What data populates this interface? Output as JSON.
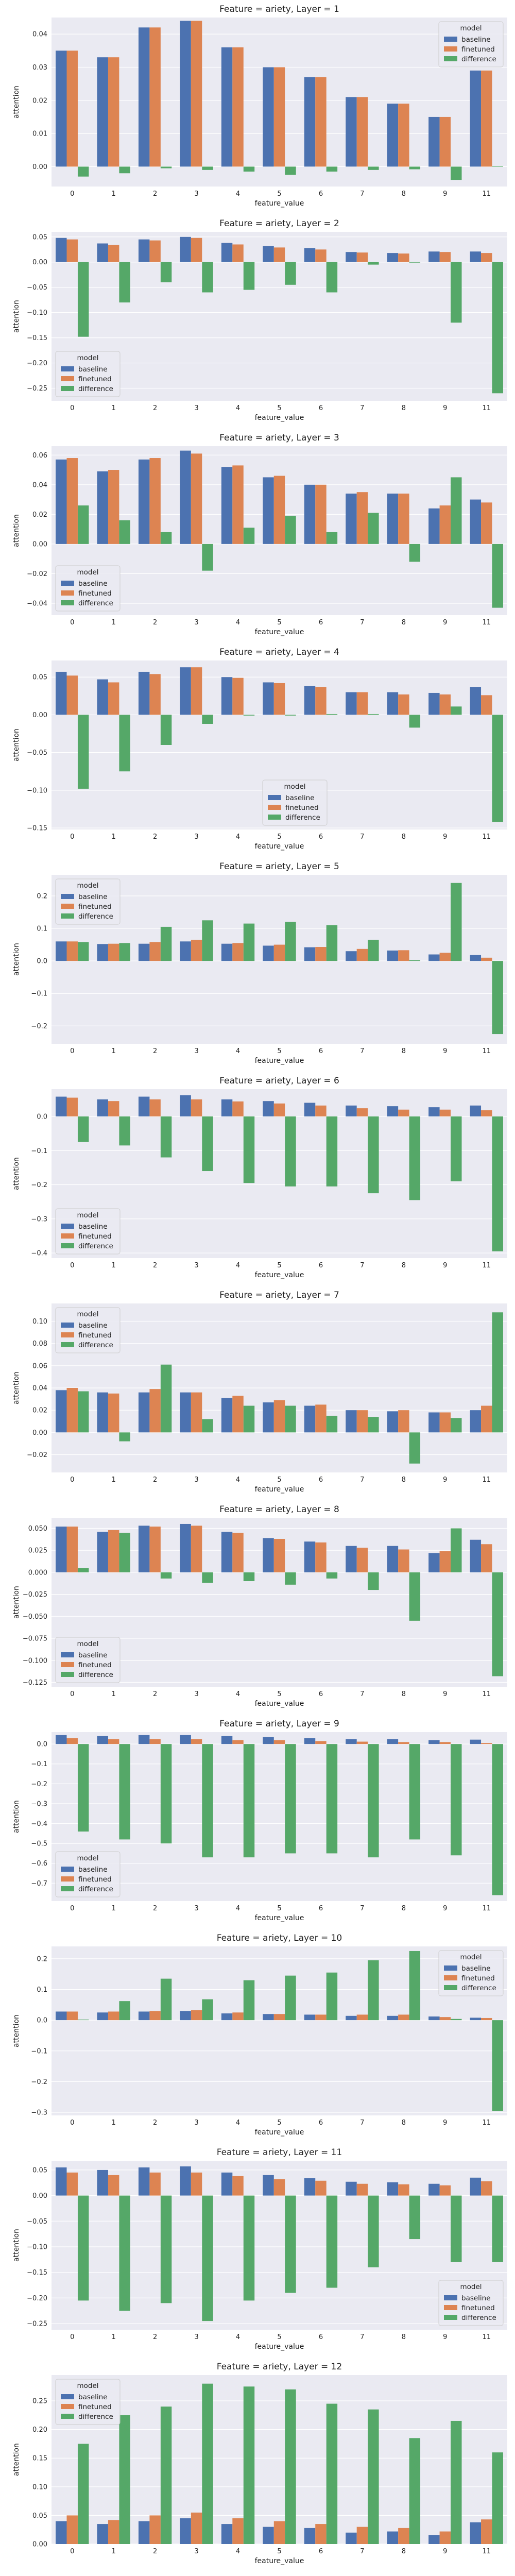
{
  "colors": {
    "baseline": "#4c72b0",
    "finetuned": "#dd8452",
    "difference": "#55a868",
    "plot_bg": "#eaeaf2",
    "grid": "#ffffff"
  },
  "legend_title": "model",
  "chart_data": [
    {
      "type": "bar",
      "title": "Feature = ariety, Layer = 1",
      "xlabel": "feature_value",
      "ylabel": "attention",
      "categories": [
        "0",
        "1",
        "2",
        "3",
        "4",
        "5",
        "6",
        "7",
        "8",
        "9",
        "11"
      ],
      "ylim": [
        -0.006,
        0.045
      ],
      "yticks": [
        0.0,
        0.01,
        0.02,
        0.03,
        0.04
      ],
      "ytick_labels": [
        "0.00",
        "0.01",
        "0.02",
        "0.03",
        "0.04"
      ],
      "legend_position": "top-right",
      "series": [
        {
          "name": "baseline",
          "values": [
            0.035,
            0.033,
            0.042,
            0.044,
            0.036,
            0.03,
            0.027,
            0.021,
            0.019,
            0.015,
            0.029
          ]
        },
        {
          "name": "finetuned",
          "values": [
            0.035,
            0.033,
            0.042,
            0.044,
            0.036,
            0.03,
            0.027,
            0.021,
            0.019,
            0.015,
            0.029
          ]
        },
        {
          "name": "difference",
          "values": [
            -0.003,
            -0.002,
            -0.0005,
            -0.001,
            -0.0015,
            -0.0025,
            -0.0015,
            -0.001,
            -0.0008,
            -0.004,
            0.0002
          ]
        }
      ]
    },
    {
      "type": "bar",
      "title": "Feature = ariety, Layer = 2",
      "xlabel": "feature_value",
      "ylabel": "attention",
      "categories": [
        "0",
        "1",
        "2",
        "3",
        "4",
        "5",
        "6",
        "7",
        "8",
        "9",
        "11"
      ],
      "ylim": [
        -0.275,
        0.06
      ],
      "yticks": [
        0.05,
        0.0,
        -0.05,
        -0.1,
        -0.15,
        -0.2,
        -0.25
      ],
      "ytick_labels": [
        "0.05",
        "0.00",
        "−0.05",
        "−0.10",
        "−0.15",
        "−0.20",
        "−0.25"
      ],
      "legend_position": "bottom-left",
      "series": [
        {
          "name": "baseline",
          "values": [
            0.048,
            0.037,
            0.045,
            0.05,
            0.038,
            0.032,
            0.028,
            0.02,
            0.018,
            0.021,
            0.021
          ]
        },
        {
          "name": "finetuned",
          "values": [
            0.045,
            0.034,
            0.043,
            0.048,
            0.035,
            0.029,
            0.025,
            0.019,
            0.017,
            0.02,
            0.018
          ]
        },
        {
          "name": "difference",
          "values": [
            -0.148,
            -0.08,
            -0.04,
            -0.06,
            -0.055,
            -0.045,
            -0.06,
            -0.005,
            -0.001,
            -0.12,
            -0.26
          ]
        }
      ]
    },
    {
      "type": "bar",
      "title": "Feature = ariety, Layer = 3",
      "xlabel": "feature_value",
      "ylabel": "attention",
      "categories": [
        "0",
        "1",
        "2",
        "3",
        "4",
        "5",
        "6",
        "7",
        "8",
        "9",
        "11"
      ],
      "ylim": [
        -0.048,
        0.066
      ],
      "yticks": [
        0.06,
        0.04,
        0.02,
        0.0,
        -0.02,
        -0.04
      ],
      "ytick_labels": [
        "0.06",
        "0.04",
        "0.02",
        "0.00",
        "−0.02",
        "−0.04"
      ],
      "legend_position": "bottom-left",
      "series": [
        {
          "name": "baseline",
          "values": [
            0.057,
            0.049,
            0.057,
            0.063,
            0.052,
            0.045,
            0.04,
            0.034,
            0.034,
            0.024,
            0.03
          ]
        },
        {
          "name": "finetuned",
          "values": [
            0.058,
            0.05,
            0.058,
            0.061,
            0.053,
            0.046,
            0.04,
            0.035,
            0.034,
            0.026,
            0.028
          ]
        },
        {
          "name": "difference",
          "values": [
            0.026,
            0.016,
            0.008,
            -0.018,
            0.011,
            0.019,
            0.008,
            0.021,
            -0.012,
            0.045,
            -0.043
          ]
        }
      ]
    },
    {
      "type": "bar",
      "title": "Feature = ariety, Layer = 4",
      "xlabel": "feature_value",
      "ylabel": "attention",
      "categories": [
        "0",
        "1",
        "2",
        "3",
        "4",
        "5",
        "6",
        "7",
        "8",
        "9",
        "11"
      ],
      "ylim": [
        -0.152,
        0.072
      ],
      "yticks": [
        0.05,
        0.0,
        -0.05,
        -0.1,
        -0.15
      ],
      "ytick_labels": [
        "0.05",
        "0.00",
        "−0.05",
        "−0.10",
        "−0.15"
      ],
      "legend_position": "bottom-center",
      "series": [
        {
          "name": "baseline",
          "values": [
            0.057,
            0.047,
            0.057,
            0.063,
            0.05,
            0.043,
            0.038,
            0.03,
            0.03,
            0.029,
            0.037
          ]
        },
        {
          "name": "finetuned",
          "values": [
            0.052,
            0.043,
            0.054,
            0.063,
            0.049,
            0.042,
            0.037,
            0.03,
            0.027,
            0.027,
            0.026
          ]
        },
        {
          "name": "difference",
          "values": [
            -0.098,
            -0.075,
            -0.04,
            -0.012,
            -0.001,
            -0.001,
            0.001,
            0.001,
            -0.017,
            0.011,
            -0.142
          ]
        }
      ]
    },
    {
      "type": "bar",
      "title": "Feature = ariety, Layer = 5",
      "xlabel": "feature_value",
      "ylabel": "attention",
      "categories": [
        "0",
        "1",
        "2",
        "3",
        "4",
        "5",
        "6",
        "7",
        "8",
        "9",
        "11"
      ],
      "ylim": [
        -0.255,
        0.265
      ],
      "yticks": [
        0.2,
        0.1,
        0.0,
        -0.1,
        -0.2
      ],
      "ytick_labels": [
        "0.2",
        "0.1",
        "0.0",
        "−0.1",
        "−0.2"
      ],
      "legend_position": "top-left",
      "series": [
        {
          "name": "baseline",
          "values": [
            0.06,
            0.052,
            0.053,
            0.06,
            0.053,
            0.047,
            0.042,
            0.03,
            0.032,
            0.02,
            0.018
          ]
        },
        {
          "name": "finetuned",
          "values": [
            0.06,
            0.053,
            0.058,
            0.065,
            0.055,
            0.05,
            0.043,
            0.037,
            0.033,
            0.025,
            0.01
          ]
        },
        {
          "name": "difference",
          "values": [
            0.058,
            0.055,
            0.105,
            0.125,
            0.115,
            0.12,
            0.11,
            0.065,
            0.002,
            0.24,
            -0.225
          ]
        }
      ]
    },
    {
      "type": "bar",
      "title": "Feature = ariety, Layer = 6",
      "xlabel": "feature_value",
      "ylabel": "attention",
      "categories": [
        "0",
        "1",
        "2",
        "3",
        "4",
        "5",
        "6",
        "7",
        "8",
        "9",
        "11"
      ],
      "ylim": [
        -0.415,
        0.08
      ],
      "yticks": [
        0.0,
        -0.1,
        -0.2,
        -0.3,
        -0.4
      ],
      "ytick_labels": [
        "0.0",
        "−0.1",
        "−0.2",
        "−0.3",
        "−0.4"
      ],
      "legend_position": "bottom-left",
      "series": [
        {
          "name": "baseline",
          "values": [
            0.058,
            0.05,
            0.058,
            0.062,
            0.05,
            0.045,
            0.04,
            0.032,
            0.03,
            0.027,
            0.032
          ]
        },
        {
          "name": "finetuned",
          "values": [
            0.055,
            0.045,
            0.05,
            0.05,
            0.044,
            0.038,
            0.032,
            0.024,
            0.02,
            0.02,
            0.018
          ]
        },
        {
          "name": "difference",
          "values": [
            -0.075,
            -0.085,
            -0.12,
            -0.16,
            -0.195,
            -0.205,
            -0.205,
            -0.225,
            -0.245,
            -0.19,
            -0.395
          ]
        }
      ]
    },
    {
      "type": "bar",
      "title": "Feature = ariety, Layer = 7",
      "xlabel": "feature_value",
      "ylabel": "attention",
      "categories": [
        "0",
        "1",
        "2",
        "3",
        "4",
        "5",
        "6",
        "7",
        "8",
        "9",
        "11"
      ],
      "ylim": [
        -0.036,
        0.116
      ],
      "yticks": [
        0.1,
        0.08,
        0.06,
        0.04,
        0.02,
        0.0,
        -0.02
      ],
      "ytick_labels": [
        "0.10",
        "0.08",
        "0.06",
        "0.04",
        "0.02",
        "0.00",
        "−0.02"
      ],
      "legend_position": "top-left",
      "series": [
        {
          "name": "baseline",
          "values": [
            0.038,
            0.036,
            0.036,
            0.036,
            0.031,
            0.027,
            0.024,
            0.02,
            0.019,
            0.018,
            0.02
          ]
        },
        {
          "name": "finetuned",
          "values": [
            0.04,
            0.035,
            0.039,
            0.036,
            0.033,
            0.029,
            0.025,
            0.02,
            0.02,
            0.018,
            0.024
          ]
        },
        {
          "name": "difference",
          "values": [
            0.037,
            -0.008,
            0.061,
            0.012,
            0.024,
            0.024,
            0.015,
            0.014,
            -0.028,
            0.013,
            0.108
          ]
        }
      ]
    },
    {
      "type": "bar",
      "title": "Feature = ariety, Layer = 8",
      "xlabel": "feature_value",
      "ylabel": "attention",
      "categories": [
        "0",
        "1",
        "2",
        "3",
        "4",
        "5",
        "6",
        "7",
        "8",
        "9",
        "11"
      ],
      "ylim": [
        -0.13,
        0.062
      ],
      "yticks": [
        0.05,
        0.025,
        0.0,
        -0.025,
        -0.05,
        -0.075,
        -0.1,
        -0.125
      ],
      "ytick_labels": [
        "0.050",
        "0.025",
        "0.000",
        "−0.025",
        "−0.050",
        "−0.075",
        "−0.100",
        "−0.125"
      ],
      "legend_position": "bottom-left",
      "series": [
        {
          "name": "baseline",
          "values": [
            0.052,
            0.046,
            0.053,
            0.055,
            0.046,
            0.039,
            0.035,
            0.03,
            0.03,
            0.022,
            0.037
          ]
        },
        {
          "name": "finetuned",
          "values": [
            0.052,
            0.048,
            0.052,
            0.053,
            0.045,
            0.038,
            0.034,
            0.028,
            0.026,
            0.024,
            0.032
          ]
        },
        {
          "name": "difference",
          "values": [
            0.005,
            0.045,
            -0.007,
            -0.012,
            -0.01,
            -0.014,
            -0.007,
            -0.02,
            -0.055,
            0.05,
            -0.118
          ]
        }
      ]
    },
    {
      "type": "bar",
      "title": "Feature = ariety, Layer = 9",
      "xlabel": "feature_value",
      "ylabel": "attention",
      "categories": [
        "0",
        "1",
        "2",
        "3",
        "4",
        "5",
        "6",
        "7",
        "8",
        "9",
        "11"
      ],
      "ylim": [
        -0.79,
        0.06
      ],
      "yticks": [
        0.0,
        -0.1,
        -0.2,
        -0.3,
        -0.4,
        -0.5,
        -0.6,
        -0.7
      ],
      "ytick_labels": [
        "0.0",
        "−0.1",
        "−0.2",
        "−0.3",
        "−0.4",
        "−0.5",
        "−0.6",
        "−0.7"
      ],
      "legend_position": "bottom-left",
      "series": [
        {
          "name": "baseline",
          "values": [
            0.045,
            0.04,
            0.045,
            0.045,
            0.04,
            0.035,
            0.03,
            0.025,
            0.025,
            0.02,
            0.022
          ]
        },
        {
          "name": "finetuned",
          "values": [
            0.03,
            0.025,
            0.025,
            0.025,
            0.02,
            0.02,
            0.015,
            0.012,
            0.01,
            0.01,
            0.005
          ]
        },
        {
          "name": "difference",
          "values": [
            -0.44,
            -0.48,
            -0.5,
            -0.57,
            -0.57,
            -0.55,
            -0.55,
            -0.57,
            -0.48,
            -0.56,
            -0.76
          ]
        }
      ]
    },
    {
      "type": "bar",
      "title": "Feature = ariety, Layer = 10",
      "xlabel": "feature_value",
      "ylabel": "attention",
      "categories": [
        "0",
        "1",
        "2",
        "3",
        "4",
        "5",
        "6",
        "7",
        "8",
        "9",
        "11"
      ],
      "ylim": [
        -0.31,
        0.24
      ],
      "yticks": [
        0.2,
        0.1,
        0.0,
        -0.1,
        -0.2,
        -0.3
      ],
      "ytick_labels": [
        "0.2",
        "0.1",
        "0.0",
        "−0.1",
        "−0.2",
        "−0.3"
      ],
      "legend_position": "top-right",
      "series": [
        {
          "name": "baseline",
          "values": [
            0.028,
            0.025,
            0.028,
            0.03,
            0.022,
            0.02,
            0.018,
            0.014,
            0.014,
            0.012,
            0.008
          ]
        },
        {
          "name": "finetuned",
          "values": [
            0.028,
            0.028,
            0.03,
            0.033,
            0.025,
            0.02,
            0.018,
            0.018,
            0.018,
            0.01,
            0.007
          ]
        },
        {
          "name": "difference",
          "values": [
            0.002,
            0.062,
            0.135,
            0.068,
            0.13,
            0.145,
            0.155,
            0.195,
            0.225,
            0.004,
            -0.295
          ]
        }
      ]
    },
    {
      "type": "bar",
      "title": "Feature = ariety, Layer = 11",
      "xlabel": "feature_value",
      "ylabel": "attention",
      "categories": [
        "0",
        "1",
        "2",
        "3",
        "4",
        "5",
        "6",
        "7",
        "8",
        "9",
        "11"
      ],
      "ylim": [
        -0.262,
        0.068
      ],
      "yticks": [
        0.05,
        0.0,
        -0.05,
        -0.1,
        -0.15,
        -0.2,
        -0.25
      ],
      "ytick_labels": [
        "0.05",
        "0.00",
        "−0.05",
        "−0.10",
        "−0.15",
        "−0.20",
        "−0.25"
      ],
      "legend_position": "bottom-right",
      "series": [
        {
          "name": "baseline",
          "values": [
            0.055,
            0.05,
            0.055,
            0.057,
            0.045,
            0.04,
            0.034,
            0.027,
            0.026,
            0.023,
            0.035
          ]
        },
        {
          "name": "finetuned",
          "values": [
            0.045,
            0.04,
            0.045,
            0.045,
            0.038,
            0.032,
            0.029,
            0.023,
            0.022,
            0.02,
            0.028
          ]
        },
        {
          "name": "difference",
          "values": [
            -0.205,
            -0.225,
            -0.21,
            -0.245,
            -0.205,
            -0.19,
            -0.18,
            -0.14,
            -0.085,
            -0.13,
            -0.13
          ]
        }
      ]
    },
    {
      "type": "bar",
      "title": "Feature = ariety, Layer = 12",
      "xlabel": "feature_value",
      "ylabel": "attention",
      "categories": [
        "0",
        "1",
        "2",
        "3",
        "4",
        "5",
        "6",
        "7",
        "8",
        "9",
        "11"
      ],
      "ylim": [
        0,
        0.295
      ],
      "yticks": [
        0.0,
        0.05,
        0.1,
        0.15,
        0.2,
        0.25
      ],
      "ytick_labels": [
        "0.00",
        "0.05",
        "0.10",
        "0.15",
        "0.20",
        "0.25"
      ],
      "legend_position": "top-left",
      "series": [
        {
          "name": "baseline",
          "values": [
            0.04,
            0.035,
            0.04,
            0.045,
            0.035,
            0.03,
            0.028,
            0.02,
            0.022,
            0.016,
            0.038
          ]
        },
        {
          "name": "finetuned",
          "values": [
            0.05,
            0.042,
            0.05,
            0.055,
            0.045,
            0.04,
            0.035,
            0.03,
            0.028,
            0.022,
            0.043
          ]
        },
        {
          "name": "difference",
          "values": [
            0.175,
            0.225,
            0.24,
            0.28,
            0.275,
            0.27,
            0.245,
            0.235,
            0.185,
            0.215,
            0.16
          ]
        }
      ]
    }
  ]
}
